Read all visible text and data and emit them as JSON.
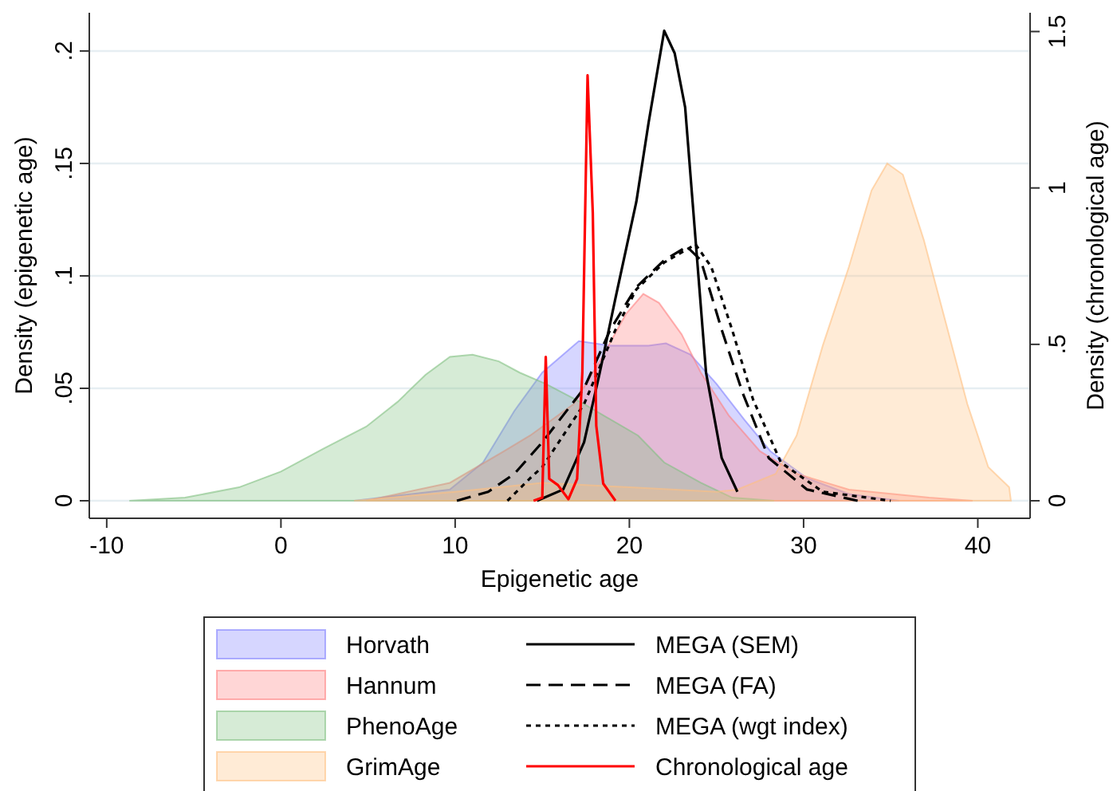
{
  "chart_data": {
    "type": "area",
    "xlabel": "Epigenetic age",
    "ylabel": "Density (epigenetic age)",
    "y2label": "Density (chronological age)",
    "xlim": [
      -11,
      43
    ],
    "xticks": [
      -10,
      0,
      10,
      20,
      30,
      40
    ],
    "ylim": [
      -0.0078,
      0.217
    ],
    "yticks": [
      0,
      {
        "value": 0.05,
        "label": ".05"
      },
      {
        "value": 0.1,
        "label": ".1"
      },
      {
        "value": 0.15,
        "label": ".15"
      },
      {
        "value": 0.2,
        "label": ".2"
      }
    ],
    "y2lim": [
      -0.056,
      1.56
    ],
    "y2ticks": [
      0,
      {
        "value": 0.5,
        "label": ".5"
      },
      1,
      {
        "value": 1.5,
        "label": "1.5"
      }
    ],
    "grid": "y",
    "legend": "bottom",
    "series": [
      {
        "name": "Horvath",
        "color": "#8080ff",
        "x": [
          4.2,
          9.7,
          11.6,
          13.4,
          15,
          17.1,
          18.9,
          21.1,
          22.1,
          23.5,
          25,
          26.6,
          28.1,
          30.2,
          32.6,
          35.5
        ],
        "values": [
          0,
          0.005,
          0.017,
          0.04,
          0.057,
          0.071,
          0.069,
          0.069,
          0.07,
          0.065,
          0.052,
          0.036,
          0.022,
          0.01,
          0.003,
          0
        ]
      },
      {
        "name": "Hannum",
        "color": "#ff8080",
        "x": [
          4.9,
          9.7,
          12.8,
          14.3,
          16.8,
          18.3,
          19.8,
          20.8,
          21.7,
          23,
          24.1,
          25.7,
          27.5,
          29.6,
          32.6,
          37.2,
          39.7
        ],
        "values": [
          0,
          0.008,
          0.022,
          0.029,
          0.043,
          0.062,
          0.083,
          0.092,
          0.088,
          0.074,
          0.057,
          0.038,
          0.022,
          0.012,
          0.005,
          0.0014,
          0
        ]
      },
      {
        "name": "PhenoAge",
        "color": "#80c080",
        "x": [
          -8.7,
          -5.5,
          -2.4,
          0,
          2.4,
          4.9,
          6.7,
          8.3,
          9.7,
          11,
          12.5,
          13.7,
          15.2,
          17.4,
          20.5,
          22,
          24.1,
          25.9,
          28.3
        ],
        "values": [
          0,
          0.0014,
          0.006,
          0.013,
          0.023,
          0.033,
          0.044,
          0.056,
          0.064,
          0.065,
          0.062,
          0.057,
          0.052,
          0.043,
          0.029,
          0.017,
          0.008,
          0.0014,
          0
        ]
      },
      {
        "name": "GrimAge",
        "color": "#ffc080",
        "x": [
          4.2,
          10,
          15,
          20,
          25,
          26.2,
          28.4,
          29.6,
          31.1,
          32.6,
          33.9,
          34.8,
          35.7,
          36.9,
          38.1,
          39.4,
          40.6,
          41.8,
          41.9
        ],
        "values": [
          0,
          0.004,
          0.008,
          0.006,
          0.004,
          0.005,
          0.012,
          0.029,
          0.069,
          0.104,
          0.138,
          0.15,
          0.145,
          0.116,
          0.081,
          0.043,
          0.015,
          0.006,
          0
        ]
      },
      {
        "name": "MEGA (SEM)",
        "type": "line",
        "line_style": "solid",
        "color": "#000000",
        "x": [
          14.7,
          16.2,
          17.4,
          18.3,
          19.2,
          20.4,
          21.1,
          22,
          22.6,
          23.2,
          23.8,
          24.4,
          25.3,
          26.2
        ],
        "values": [
          0,
          0.005,
          0.026,
          0.057,
          0.09,
          0.133,
          0.168,
          0.209,
          0.199,
          0.175,
          0.116,
          0.057,
          0.019,
          0.004
        ]
      },
      {
        "name": "MEGA (FA)",
        "type": "line",
        "line_style": "dashed",
        "color": "#000000",
        "x": [
          10.1,
          11.9,
          13.4,
          15,
          17.4,
          18.9,
          20.4,
          22,
          23.3,
          24.1,
          25.3,
          26.5,
          28,
          30.2,
          33.1
        ],
        "values": [
          0,
          0.004,
          0.012,
          0.026,
          0.05,
          0.076,
          0.095,
          0.107,
          0.113,
          0.107,
          0.076,
          0.048,
          0.019,
          0.005,
          0
        ]
      },
      {
        "name": "MEGA (wgt index)",
        "type": "line",
        "line_style": "dotted",
        "color": "#000000",
        "x": [
          13,
          14.3,
          15,
          17.4,
          19.2,
          20.4,
          22,
          23.8,
          24.7,
          25.9,
          27.1,
          28.7,
          31.1,
          35
        ],
        "values": [
          0,
          0.01,
          0.015,
          0.043,
          0.076,
          0.094,
          0.106,
          0.114,
          0.104,
          0.076,
          0.045,
          0.017,
          0.004,
          0
        ]
      },
      {
        "name": "Chronological age",
        "type": "line",
        "line_style": "solid",
        "axis": "y2",
        "color": "#ff0000",
        "x": [
          14.5,
          15,
          15.2,
          15.4,
          15.9,
          16.5,
          17,
          17.3,
          17.6,
          17.9,
          18.1,
          18.5,
          19.2
        ],
        "values": [
          0,
          0.01,
          0.46,
          0.07,
          0.05,
          0.005,
          0.07,
          0.41,
          1.36,
          0.92,
          0.24,
          0.055,
          0
        ]
      }
    ]
  }
}
